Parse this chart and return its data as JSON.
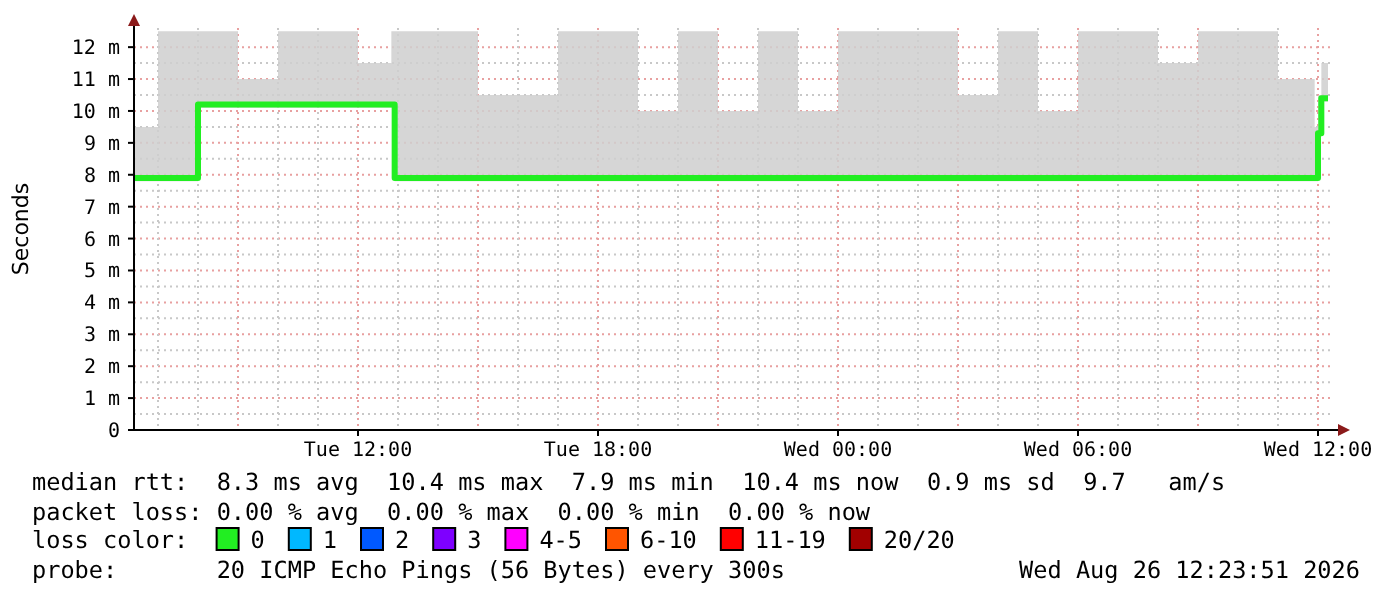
{
  "chart_data": {
    "type": "step",
    "ylabel": "Seconds",
    "legend_title": "loss color:",
    "legend": "bottom",
    "grid": true,
    "x": [
      "2026-08-25T06:24",
      "2026-08-25T07:00",
      "2026-08-25T07:55",
      "2026-08-25T08:00",
      "2026-08-25T09:00",
      "2026-08-25T10:00",
      "2026-08-25T11:00",
      "2026-08-25T12:00",
      "2026-08-25T12:50",
      "2026-08-25T12:55",
      "2026-08-25T14:00",
      "2026-08-25T15:00",
      "2026-08-25T16:00",
      "2026-08-25T17:00",
      "2026-08-25T18:00",
      "2026-08-25T19:00",
      "2026-08-25T20:00",
      "2026-08-25T21:00",
      "2026-08-25T22:00",
      "2026-08-25T23:00",
      "2026-08-26T00:00",
      "2026-08-26T01:00",
      "2026-08-26T02:00",
      "2026-08-26T03:00",
      "2026-08-26T04:00",
      "2026-08-26T05:00",
      "2026-08-26T06:00",
      "2026-08-26T07:00",
      "2026-08-26T08:00",
      "2026-08-26T09:00",
      "2026-08-26T10:00",
      "2026-08-26T11:00",
      "2026-08-26T11:55",
      "2026-08-26T12:00",
      "2026-08-26T12:05",
      "2026-08-26T12:15"
    ],
    "series": [
      {
        "name": "0",
        "color": "#22ee22",
        "values": [
          7.9,
          7.9,
          7.9,
          10.2,
          10.2,
          10.2,
          10.2,
          10.2,
          10.2,
          7.9,
          7.9,
          7.9,
          7.9,
          7.9,
          7.9,
          7.9,
          7.9,
          7.9,
          7.9,
          7.9,
          7.9,
          7.9,
          7.9,
          7.9,
          7.9,
          7.9,
          7.9,
          7.9,
          7.9,
          7.9,
          7.9,
          7.9,
          7.9,
          9.3,
          10.4,
          10.4
        ],
        "lower": [
          7.8,
          7.8,
          7.8,
          10.1,
          10.1,
          10.1,
          10.1,
          10.1,
          10.1,
          7.8,
          7.8,
          7.8,
          7.8,
          7.8,
          7.8,
          7.8,
          7.8,
          7.8,
          7.8,
          7.8,
          7.8,
          7.8,
          7.8,
          7.8,
          7.8,
          7.8,
          7.8,
          7.8,
          7.8,
          7.8,
          7.8,
          7.8,
          7.8,
          9.2,
          10.3,
          10.3
        ],
        "upper": [
          9.5,
          12.5,
          12.5,
          12.5,
          11,
          12.5,
          12.5,
          11.5,
          12.5,
          12.5,
          12.5,
          10.5,
          10.5,
          12.5,
          12.5,
          10,
          12.5,
          10,
          12.5,
          10,
          12.5,
          12.5,
          12.5,
          10.5,
          12.5,
          10,
          12.5,
          12.5,
          11.5,
          12.5,
          12.5,
          11,
          9.5,
          10.5,
          11.5,
          12.5
        ]
      },
      {
        "name": "1",
        "color": "#00b8ff",
        "values": [
          null,
          null,
          null,
          null,
          null,
          null,
          null,
          null,
          null,
          null,
          null,
          null,
          null,
          null,
          null,
          null,
          null,
          null,
          null,
          null,
          null,
          null,
          null,
          null,
          null,
          null,
          null,
          null,
          null,
          null,
          null,
          null,
          null,
          null,
          null,
          null
        ]
      },
      {
        "name": "2",
        "color": "#0059ff",
        "values": [
          null,
          null,
          null,
          null,
          null,
          null,
          null,
          null,
          null,
          null,
          null,
          null,
          null,
          null,
          null,
          null,
          null,
          null,
          null,
          null,
          null,
          null,
          null,
          null,
          null,
          null,
          null,
          null,
          null,
          null,
          null,
          null,
          null,
          null,
          null,
          null
        ]
      },
      {
        "name": "3",
        "color": "#7e00ff",
        "values": [
          null,
          null,
          null,
          null,
          null,
          null,
          null,
          null,
          null,
          null,
          null,
          null,
          null,
          null,
          null,
          null,
          null,
          null,
          null,
          null,
          null,
          null,
          null,
          null,
          null,
          null,
          null,
          null,
          null,
          null,
          null,
          null,
          null,
          null,
          null,
          null
        ]
      },
      {
        "name": "4-5",
        "color": "#ff00ff",
        "values": [
          null,
          null,
          null,
          null,
          null,
          null,
          null,
          null,
          null,
          null,
          null,
          null,
          null,
          null,
          null,
          null,
          null,
          null,
          null,
          null,
          null,
          null,
          null,
          null,
          null,
          null,
          null,
          null,
          null,
          null,
          null,
          null,
          null,
          null,
          null,
          null
        ]
      },
      {
        "name": "6-10",
        "color": "#ff5500",
        "values": [
          null,
          null,
          null,
          null,
          null,
          null,
          null,
          null,
          null,
          null,
          null,
          null,
          null,
          null,
          null,
          null,
          null,
          null,
          null,
          null,
          null,
          null,
          null,
          null,
          null,
          null,
          null,
          null,
          null,
          null,
          null,
          null,
          null,
          null,
          null,
          null
        ]
      },
      {
        "name": "11-19",
        "color": "#ff0000",
        "values": [
          null,
          null,
          null,
          null,
          null,
          null,
          null,
          null,
          null,
          null,
          null,
          null,
          null,
          null,
          null,
          null,
          null,
          null,
          null,
          null,
          null,
          null,
          null,
          null,
          null,
          null,
          null,
          null,
          null,
          null,
          null,
          null,
          null,
          null,
          null,
          null
        ]
      },
      {
        "name": "20/20",
        "color": "#a10000",
        "values": [
          null,
          null,
          null,
          null,
          null,
          null,
          null,
          null,
          null,
          null,
          null,
          null,
          null,
          null,
          null,
          null,
          null,
          null,
          null,
          null,
          null,
          null,
          null,
          null,
          null,
          null,
          null,
          null,
          null,
          null,
          null,
          null,
          null,
          null,
          null,
          null
        ]
      }
    ],
    "xlim": [
      "2026-08-25T06:24",
      "2026-08-26T12:18"
    ],
    "xticks": [
      {
        "value": "2026-08-25T12:00",
        "label": "Tue 12:00"
      },
      {
        "value": "2026-08-25T18:00",
        "label": "Tue 18:00"
      },
      {
        "value": "2026-08-26T00:00",
        "label": "Wed 00:00"
      },
      {
        "value": "2026-08-26T06:00",
        "label": "Wed 06:00"
      },
      {
        "value": "2026-08-26T12:00",
        "label": "Wed 12:00"
      }
    ],
    "ylim": [
      0,
      12.6
    ],
    "yticks": [
      0,
      {
        "value": 1,
        "label": "1 m"
      },
      {
        "value": 2,
        "label": "2 m"
      },
      {
        "value": 3,
        "label": "3 m"
      },
      {
        "value": 4,
        "label": "4 m"
      },
      {
        "value": 5,
        "label": "5 m"
      },
      {
        "value": 6,
        "label": "6 m"
      },
      {
        "value": 7,
        "label": "7 m"
      },
      {
        "value": 8,
        "label": "8 m"
      },
      {
        "value": 9,
        "label": "9 m"
      },
      {
        "value": 10,
        "label": "10 m"
      },
      {
        "value": 11,
        "label": "11 m"
      },
      {
        "value": 12,
        "label": "12 m"
      }
    ],
    "annotations": [
      "median rtt:  8.3 ms avg  10.4 ms max  7.9 ms min  10.4 ms now  0.9 ms sd  9.7   am/s",
      "packet loss: 0.00 % avg  0.00 % max  0.00 % min  0.00 % now",
      "probe:       20 ICMP Echo Pings (56 Bytes) every 300s",
      "Wed Aug 26 12:23:51 2026"
    ]
  }
}
